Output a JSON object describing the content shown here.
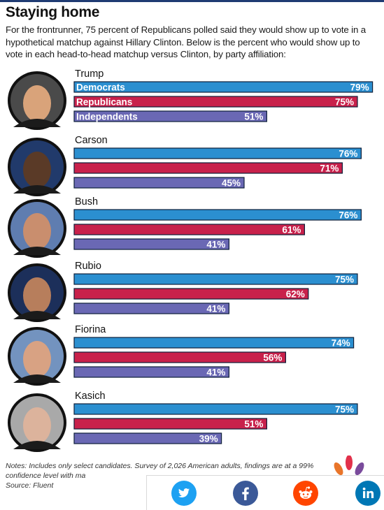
{
  "header": {
    "title": "Staying home",
    "subtitle": "For the frontrunner, 75 percent of Republicans polled said they would show up to vote in a hypothetical matchup against Hillary Clinton. Below is the percent who would show up to vote in each head-to-head matchup versus Clinton, by party affiliation:"
  },
  "chart_data": {
    "type": "bar",
    "orientation": "horizontal",
    "value_suffix": "%",
    "xlim": [
      0,
      100
    ],
    "grid": false,
    "series_labels_shown_on": "Trump",
    "series": [
      {
        "name": "Democrats",
        "color": "#2b8fd0"
      },
      {
        "name": "Republicans",
        "color": "#c8214b"
      },
      {
        "name": "Independents",
        "color": "#6a68b4"
      }
    ],
    "groups": [
      {
        "candidate": "Trump",
        "values": [
          79,
          75,
          51
        ]
      },
      {
        "candidate": "Carson",
        "values": [
          76,
          71,
          45
        ]
      },
      {
        "candidate": "Bush",
        "values": [
          76,
          61,
          41
        ]
      },
      {
        "candidate": "Rubio",
        "values": [
          75,
          62,
          41
        ]
      },
      {
        "candidate": "Fiorina",
        "values": [
          74,
          56,
          41
        ]
      },
      {
        "candidate": "Kasich",
        "values": [
          75,
          51,
          39
        ]
      }
    ]
  },
  "footer": {
    "notes": "Notes: Includes only select candidates. Survey of 2,026 American adults, findings are at a 99% confidence level with ma",
    "source": "Source: Fluent"
  },
  "share": [
    {
      "icon": "twitter-icon",
      "color": "#1da1f2"
    },
    {
      "icon": "facebook-icon",
      "color": "#3b5998"
    },
    {
      "icon": "reddit-icon",
      "color": "#ff4500"
    },
    {
      "icon": "linkedin-icon",
      "color": "#0077b5"
    }
  ],
  "brand": {
    "logo": "nbc-peacock-icon"
  }
}
